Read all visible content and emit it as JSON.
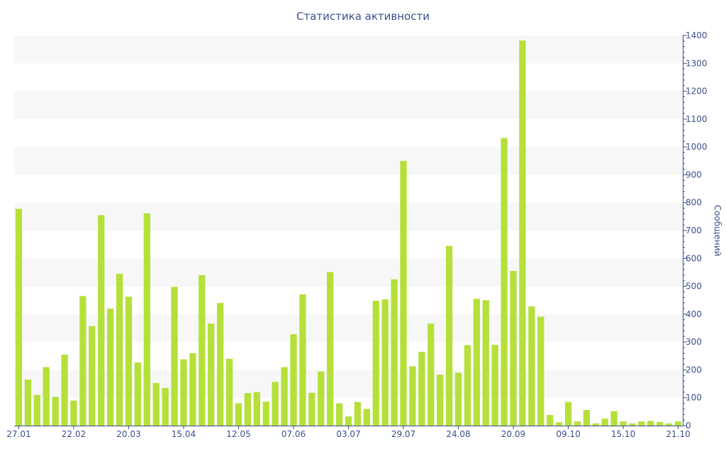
{
  "chart_data": {
    "type": "bar",
    "title": "Статистика активности",
    "xlabel": "",
    "ylabel": "Сообщений",
    "y_axis_side": "right",
    "ylim": [
      0,
      1400
    ],
    "yticks": [
      0,
      100,
      200,
      300,
      400,
      500,
      600,
      700,
      800,
      900,
      1000,
      1100,
      1200,
      1300,
      1400
    ],
    "x_tick_labels": [
      "27.01",
      "22.02",
      "20.03",
      "15.04",
      "12.05",
      "07.06",
      "03.07",
      "29.07",
      "24.08",
      "20.09",
      "09.10",
      "15.10",
      "21.10"
    ],
    "x_tick_positions": [
      0,
      6,
      12,
      18,
      24,
      30,
      36,
      42,
      48,
      54,
      60,
      66,
      72
    ],
    "grid": "alternating horizontal bands",
    "bar_color": "#b5e03a",
    "values": [
      778,
      165,
      110,
      210,
      103,
      255,
      90,
      465,
      357,
      755,
      420,
      545,
      463,
      227,
      762,
      153,
      135,
      498,
      238,
      260,
      540,
      366,
      440,
      240,
      80,
      117,
      120,
      86,
      157,
      210,
      328,
      471,
      118,
      194,
      551,
      80,
      33,
      85,
      60,
      448,
      453,
      525,
      950,
      213,
      265,
      366,
      183,
      645,
      190,
      289,
      455,
      450,
      290,
      1032,
      555,
      1382,
      428,
      391,
      38,
      12,
      85,
      15,
      56,
      8,
      25,
      52,
      15,
      8,
      15,
      17,
      13,
      8,
      15
    ]
  }
}
